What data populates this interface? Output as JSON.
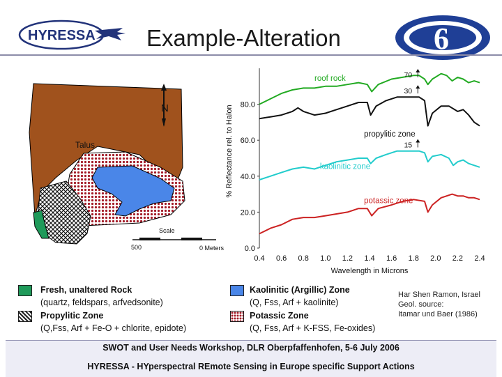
{
  "slide": {
    "title": "Example-Alteration"
  },
  "logos": {
    "hyressa_text": "HYRESSA",
    "eu_number": "6"
  },
  "map": {
    "north_label": "N",
    "talus_label": "Talus",
    "scale_label": "Scale",
    "scale_left": "500",
    "scale_right": "0 Meters",
    "colors": {
      "talus": "#a0521d",
      "propylitic_pattern": "#ffffff",
      "potassic": "#a31a26",
      "kaolinitic": "#4a86e8",
      "fresh": "#1f9a5a"
    }
  },
  "legend": {
    "items": [
      {
        "title": "Fresh, unaltered Rock",
        "sub": "(quartz, feldspars, arfvedsonite)",
        "color": "#1f9a5a"
      },
      {
        "title": "Propylitic Zone",
        "sub": "(Q,Fss, Arf + Fe-O + chlorite, epidote)",
        "color": "#333333"
      },
      {
        "title": "Kaolinitic (Argillic) Zone",
        "sub": "(Q, Fss, Arf + kaolinite)",
        "color": "#4a86e8"
      },
      {
        "title": "Potassic Zone",
        "sub": "(Q, Fss, Arf + K-FSS, Fe-oxides)",
        "color": "#a31a26"
      }
    ],
    "credit": [
      "Har Shen Ramon, Israel",
      "Geol. source:",
      "Itamar und Baer (1986)"
    ]
  },
  "footer": {
    "line1": "SWOT and User Needs Workshop, DLR Oberpfaffenhofen,  5-6 July 2006",
    "line2": "HYRESSA - HYperspectral REmote Sensing in Europe specific Support Actions"
  },
  "chart_data": {
    "type": "line",
    "xlabel": "Wavelength in Microns",
    "ylabel": "% Reflectance rel. to Halon",
    "xlim": [
      0.4,
      2.4
    ],
    "ylim": [
      0,
      100
    ],
    "x_ticks": [
      "0.4",
      "0.6",
      "0.8",
      "1.0",
      "1.2",
      "1.4",
      "1.6",
      "1.8",
      "2.0",
      "2.2",
      "2.4"
    ],
    "y_ticks": [
      "0.0",
      "20.0",
      "40.0",
      "60.0",
      "80.0"
    ],
    "y_tick_values": [
      0,
      20,
      40,
      60,
      80
    ],
    "series": [
      {
        "name": "roof rock",
        "color": "#22aa22",
        "offset_label": "70",
        "points": [
          [
            0.4,
            80
          ],
          [
            0.5,
            83
          ],
          [
            0.6,
            86
          ],
          [
            0.7,
            88
          ],
          [
            0.8,
            89
          ],
          [
            0.9,
            89
          ],
          [
            1.0,
            90
          ],
          [
            1.1,
            90
          ],
          [
            1.2,
            91
          ],
          [
            1.3,
            92
          ],
          [
            1.38,
            91
          ],
          [
            1.42,
            87
          ],
          [
            1.48,
            91
          ],
          [
            1.6,
            94
          ],
          [
            1.7,
            95
          ],
          [
            1.8,
            96
          ],
          [
            1.85,
            96
          ],
          [
            1.9,
            94
          ],
          [
            1.93,
            91
          ],
          [
            1.97,
            94
          ],
          [
            2.05,
            97
          ],
          [
            2.1,
            96
          ],
          [
            2.15,
            93
          ],
          [
            2.2,
            95
          ],
          [
            2.25,
            94
          ],
          [
            2.3,
            92
          ],
          [
            2.35,
            93
          ],
          [
            2.4,
            92
          ]
        ]
      },
      {
        "name": "propylitic zone",
        "color": "#111111",
        "offset_label": "30",
        "points": [
          [
            0.4,
            72
          ],
          [
            0.5,
            73
          ],
          [
            0.6,
            74
          ],
          [
            0.7,
            76
          ],
          [
            0.75,
            78
          ],
          [
            0.8,
            76
          ],
          [
            0.9,
            74
          ],
          [
            1.0,
            75
          ],
          [
            1.1,
            77
          ],
          [
            1.2,
            79
          ],
          [
            1.3,
            81
          ],
          [
            1.38,
            81
          ],
          [
            1.41,
            74
          ],
          [
            1.46,
            79
          ],
          [
            1.55,
            82
          ],
          [
            1.65,
            84
          ],
          [
            1.75,
            84
          ],
          [
            1.85,
            84
          ],
          [
            1.9,
            82
          ],
          [
            1.93,
            68
          ],
          [
            1.97,
            75
          ],
          [
            2.05,
            79
          ],
          [
            2.12,
            79
          ],
          [
            2.2,
            76
          ],
          [
            2.25,
            77
          ],
          [
            2.3,
            74
          ],
          [
            2.35,
            70
          ],
          [
            2.4,
            68
          ]
        ]
      },
      {
        "name": "kaolinitic zone",
        "color": "#22cccc",
        "offset_label": "15",
        "points": [
          [
            0.4,
            38
          ],
          [
            0.5,
            40
          ],
          [
            0.6,
            42
          ],
          [
            0.7,
            44
          ],
          [
            0.8,
            45
          ],
          [
            0.9,
            44
          ],
          [
            1.0,
            46
          ],
          [
            1.1,
            48
          ],
          [
            1.2,
            49
          ],
          [
            1.3,
            50
          ],
          [
            1.38,
            50
          ],
          [
            1.41,
            47
          ],
          [
            1.46,
            50
          ],
          [
            1.55,
            52
          ],
          [
            1.65,
            54
          ],
          [
            1.75,
            54
          ],
          [
            1.85,
            54
          ],
          [
            1.9,
            53
          ],
          [
            1.93,
            48
          ],
          [
            1.97,
            51
          ],
          [
            2.05,
            52
          ],
          [
            2.12,
            50
          ],
          [
            2.16,
            46
          ],
          [
            2.2,
            48
          ],
          [
            2.25,
            49
          ],
          [
            2.3,
            47
          ],
          [
            2.35,
            46
          ],
          [
            2.4,
            45
          ]
        ]
      },
      {
        "name": "potassic zone",
        "color": "#cc2222",
        "offset_label": "",
        "points": [
          [
            0.4,
            8
          ],
          [
            0.5,
            11
          ],
          [
            0.6,
            13
          ],
          [
            0.7,
            16
          ],
          [
            0.8,
            17
          ],
          [
            0.9,
            17
          ],
          [
            1.0,
            18
          ],
          [
            1.1,
            19
          ],
          [
            1.2,
            20
          ],
          [
            1.3,
            22
          ],
          [
            1.38,
            22
          ],
          [
            1.42,
            18
          ],
          [
            1.48,
            22
          ],
          [
            1.6,
            24
          ],
          [
            1.7,
            26
          ],
          [
            1.8,
            27
          ],
          [
            1.9,
            26
          ],
          [
            1.93,
            20
          ],
          [
            1.97,
            24
          ],
          [
            2.05,
            28
          ],
          [
            2.15,
            30
          ],
          [
            2.2,
            29
          ],
          [
            2.25,
            29
          ],
          [
            2.3,
            28
          ],
          [
            2.35,
            28
          ],
          [
            2.4,
            27
          ]
        ]
      }
    ]
  }
}
